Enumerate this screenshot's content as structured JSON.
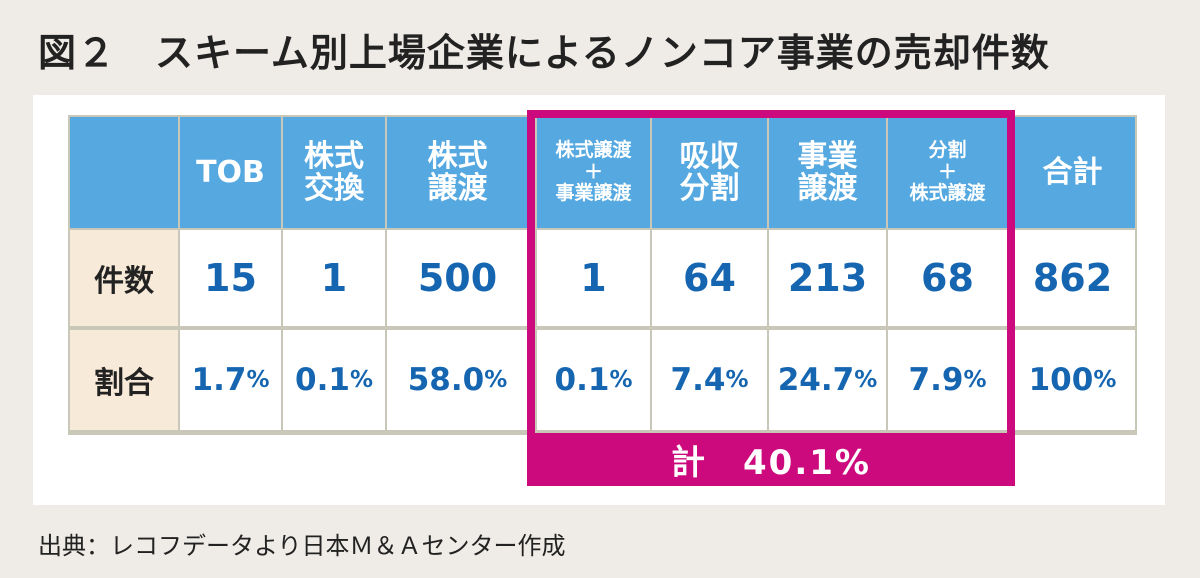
{
  "title": "図２　スキーム別上場企業によるノンコア事業の売却件数",
  "colors": {
    "header": "#56a9e0",
    "row_header": "#f7ead8",
    "value": "#1565b0",
    "highlight": "#cc0a7d"
  },
  "table": {
    "headers": [
      "",
      "TOB",
      "株式\n交換",
      "株式\n譲渡",
      "株式譲渡\n＋\n事業譲渡",
      "吸収\n分割",
      "事業\n譲渡",
      "分割\n＋\n株式譲渡",
      "合計"
    ],
    "rows": [
      {
        "label": "件数",
        "values": [
          "15",
          "1",
          "500",
          "1",
          "64",
          "213",
          "68",
          "862"
        ]
      },
      {
        "label": "割合",
        "values": [
          "1.7",
          "0.1",
          "58.0",
          "0.1",
          "7.4",
          "24.7",
          "7.9",
          "100"
        ],
        "unit": "%"
      }
    ]
  },
  "highlight_total": "計　40.1%",
  "source": "出典：レコフデータより日本Ｍ＆Ａセンター作成"
}
